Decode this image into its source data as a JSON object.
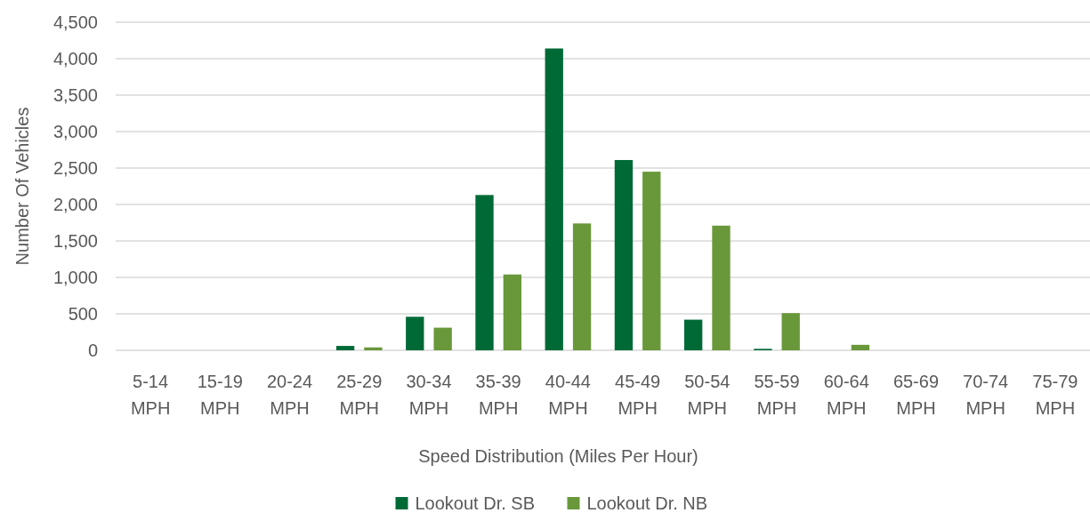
{
  "chart_data": {
    "type": "bar",
    "xlabel": "Speed Distribution (Miles Per Hour)",
    "ylabel": "Number Of Vehicles",
    "categories": [
      "5-14 MPH",
      "15-19 MPH",
      "20-24 MPH",
      "25-29 MPH",
      "30-34 MPH",
      "35-39 MPH",
      "40-44 MPH",
      "45-49 MPH",
      "50-54 MPH",
      "55-59 MPH",
      "60-64 MPH",
      "65-69 MPH",
      "70-74 MPH",
      "75-79 MPH"
    ],
    "series": [
      {
        "name": "Lookout Dr. SB",
        "color": "#006a37",
        "values": [
          0,
          0,
          0,
          60,
          460,
          2130,
          4140,
          2610,
          420,
          20,
          0,
          0,
          0,
          0
        ]
      },
      {
        "name": "Lookout Dr. NB",
        "color": "#69983a",
        "values": [
          0,
          0,
          0,
          40,
          310,
          1040,
          1740,
          2450,
          1710,
          510,
          75,
          0,
          0,
          0
        ]
      }
    ],
    "ylim": [
      0,
      4500
    ],
    "yticks": [
      {
        "value": 0,
        "label": "0"
      },
      {
        "value": 500,
        "label": "500"
      },
      {
        "value": 1000,
        "label": "1,000"
      },
      {
        "value": 1500,
        "label": "1,500"
      },
      {
        "value": 2000,
        "label": "2,000"
      },
      {
        "value": 2500,
        "label": "2,500"
      },
      {
        "value": 3000,
        "label": "3,000"
      },
      {
        "value": 3500,
        "label": "3,500"
      },
      {
        "value": 4000,
        "label": "4,000"
      },
      {
        "value": 4500,
        "label": "4,500"
      }
    ],
    "grid": "y",
    "legend": "bottom"
  }
}
